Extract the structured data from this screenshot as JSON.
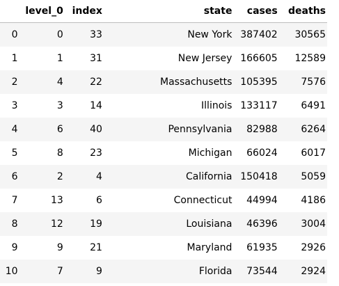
{
  "table": {
    "columns": {
      "row_index": "",
      "level_0": "level_0",
      "index": "index",
      "state": "state",
      "cases": "cases",
      "deaths": "deaths"
    },
    "rows": [
      {
        "row_index": "0",
        "level_0": "0",
        "index": "33",
        "state": "New York",
        "cases": "387402",
        "deaths": "30565"
      },
      {
        "row_index": "1",
        "level_0": "1",
        "index": "31",
        "state": "New Jersey",
        "cases": "166605",
        "deaths": "12589"
      },
      {
        "row_index": "2",
        "level_0": "4",
        "index": "22",
        "state": "Massachusetts",
        "cases": "105395",
        "deaths": "7576"
      },
      {
        "row_index": "3",
        "level_0": "3",
        "index": "14",
        "state": "Illinois",
        "cases": "133117",
        "deaths": "6491"
      },
      {
        "row_index": "4",
        "level_0": "6",
        "index": "40",
        "state": "Pennsylvania",
        "cases": "82988",
        "deaths": "6264"
      },
      {
        "row_index": "5",
        "level_0": "8",
        "index": "23",
        "state": "Michigan",
        "cases": "66024",
        "deaths": "6017"
      },
      {
        "row_index": "6",
        "level_0": "2",
        "index": "4",
        "state": "California",
        "cases": "150418",
        "deaths": "5059"
      },
      {
        "row_index": "7",
        "level_0": "13",
        "index": "6",
        "state": "Connecticut",
        "cases": "44994",
        "deaths": "4186"
      },
      {
        "row_index": "8",
        "level_0": "12",
        "index": "19",
        "state": "Louisiana",
        "cases": "46396",
        "deaths": "3004"
      },
      {
        "row_index": "9",
        "level_0": "9",
        "index": "21",
        "state": "Maryland",
        "cases": "61935",
        "deaths": "2926"
      },
      {
        "row_index": "10",
        "level_0": "7",
        "index": "9",
        "state": "Florida",
        "cases": "73544",
        "deaths": "2924"
      }
    ]
  },
  "colors": {
    "stripe": "#f5f5f5",
    "header_border": "#bdbdbd",
    "text": "#000000"
  }
}
